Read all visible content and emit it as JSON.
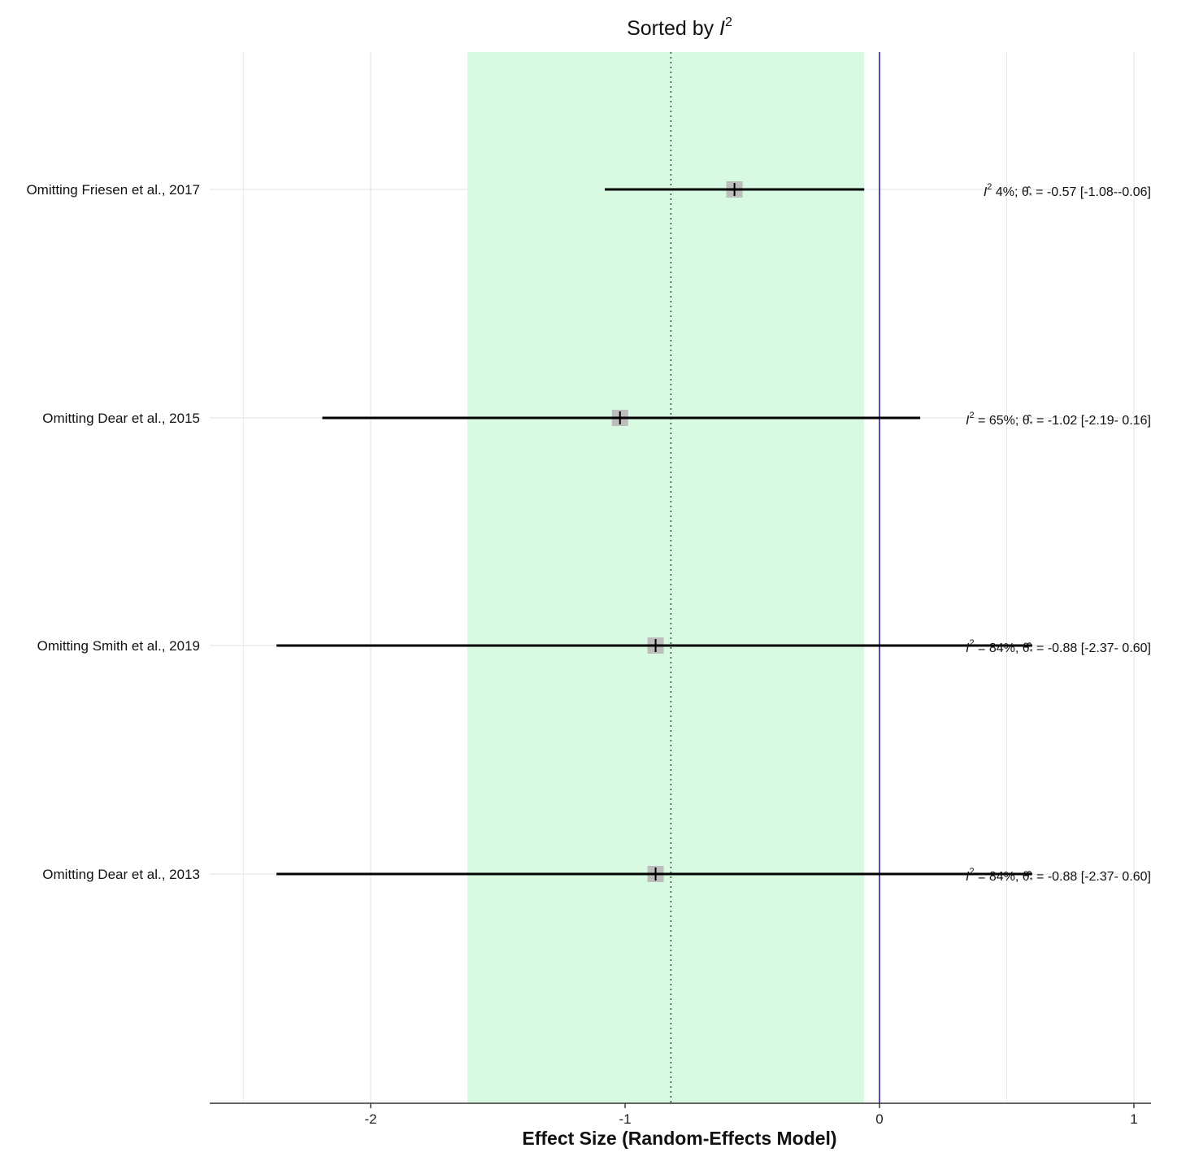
{
  "chart_data": {
    "type": "forest",
    "title": "Sorted by I²",
    "title_parts": {
      "prefix": "Sorted by ",
      "italic": "I",
      "sup": "2"
    },
    "xlabel": "Effect Size (Random-Effects Model)",
    "xlim": [
      -2.5,
      1
    ],
    "xticks": [
      -2,
      -1,
      0,
      1
    ],
    "xtick_labels": [
      "-2",
      "-1",
      "0",
      "1"
    ],
    "minor_gridlines": [
      -2.5,
      -1.5,
      -0.5,
      0.5
    ],
    "grid": true,
    "pooled_estimate": -0.82,
    "pooled_ci": [
      -1.62,
      -0.06
    ],
    "reference_line": 0,
    "studies": [
      {
        "label": "Omitting Friesen et al., 2017",
        "i2": 4,
        "estimate": -0.57,
        "ci_lower": -1.08,
        "ci_upper": -0.06,
        "stat_i2": " 4%;",
        "stat_est": " = -0.57 [-1.08--0.06]"
      },
      {
        "label": "Omitting Dear et al., 2015",
        "i2": 65,
        "estimate": -1.02,
        "ci_lower": -2.19,
        "ci_upper": 0.16,
        "stat_i2": " = 65%;",
        "stat_est": " = -1.02 [-2.19- 0.16]"
      },
      {
        "label": "Omitting Smith et al., 2019",
        "i2": 84,
        "estimate": -0.88,
        "ci_lower": -2.37,
        "ci_upper": 0.6,
        "stat_i2": " = 84%;",
        "stat_est": " = -0.88 [-2.37- 0.60]"
      },
      {
        "label": "Omitting Dear et al., 2013",
        "i2": 84,
        "estimate": -0.88,
        "ci_lower": -2.37,
        "ci_upper": 0.6,
        "stat_i2": " = 84%;",
        "stat_est": " = -0.88 [-2.37- 0.60]"
      }
    ],
    "colors": {
      "ci_band": "#d5fae0",
      "reference_line": "#2222bb",
      "pooled_line": "#2f5f3f",
      "gridline": "#ebebeb",
      "point_box": "#bdbdbd",
      "ci_line": "#000000",
      "axis": "#333333"
    }
  }
}
